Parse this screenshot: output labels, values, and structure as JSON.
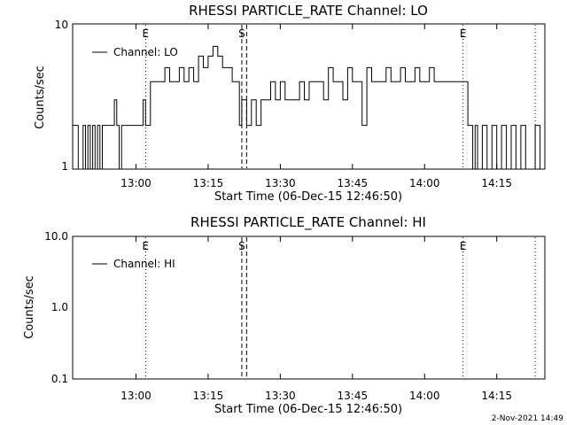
{
  "chart_data": [
    {
      "type": "line",
      "title": "RHESSI PARTICLE_RATE Channel: LO",
      "xlabel": "Start Time (06-Dec-15 12:46:50)",
      "ylabel": "Counts/sec",
      "yscale": "log",
      "ylim": [
        1,
        10
      ],
      "ytick_labels": [
        "1",
        "10"
      ],
      "xlim": [
        "12:46:50",
        "14:25:00"
      ],
      "xtick_labels": [
        "13:00",
        "13:15",
        "13:30",
        "13:45",
        "14:00",
        "14:15"
      ],
      "legend": {
        "placement": "top-left",
        "entries": [
          "Channel: LO"
        ]
      },
      "markers": [
        {
          "label": "E",
          "time": "13:02:00",
          "style": "dotted"
        },
        {
          "label": "S",
          "time": "13:22:00",
          "style": "dashed"
        },
        {
          "label": "",
          "time": "13:23:00",
          "style": "dashed"
        },
        {
          "label": "E",
          "time": "14:08:00",
          "style": "dotted"
        },
        {
          "label": "",
          "time": "14:23:00",
          "style": "dotted"
        }
      ],
      "series": [
        {
          "name": "Channel: LO",
          "x": [
            "12:46:50",
            "12:48:00",
            "12:49:00",
            "12:49:30",
            "12:50:00",
            "12:50:30",
            "12:51:00",
            "12:51:30",
            "12:52:00",
            "12:52:30",
            "12:53:00",
            "12:54:00",
            "12:55:00",
            "12:55:30",
            "12:56:00",
            "12:56:30",
            "12:57:00",
            "12:58:00",
            "12:59:00",
            "13:00:00",
            "13:01:00",
            "13:01:30",
            "13:02:00",
            "13:03:00",
            "13:04:00",
            "13:05:00",
            "13:06:00",
            "13:07:00",
            "13:08:00",
            "13:09:00",
            "13:10:00",
            "13:11:00",
            "13:12:00",
            "13:13:00",
            "13:14:00",
            "13:15:00",
            "13:16:00",
            "13:17:00",
            "13:18:00",
            "13:19:00",
            "13:20:00",
            "13:20:30",
            "13:21:00",
            "13:21:30",
            "13:22:00",
            "13:23:00",
            "13:24:00",
            "13:25:00",
            "13:26:00",
            "13:27:00",
            "13:28:00",
            "13:29:00",
            "13:30:00",
            "13:31:00",
            "13:32:00",
            "13:33:00",
            "13:34:00",
            "13:35:00",
            "13:36:00",
            "13:37:00",
            "13:38:00",
            "13:39:00",
            "13:40:00",
            "13:41:00",
            "13:42:00",
            "13:43:00",
            "13:44:00",
            "13:45:00",
            "13:46:00",
            "13:47:00",
            "13:48:00",
            "13:49:00",
            "13:50:00",
            "13:51:00",
            "13:52:00",
            "13:53:00",
            "13:54:00",
            "13:55:00",
            "13:56:00",
            "13:57:00",
            "13:58:00",
            "13:59:00",
            "14:00:00",
            "14:01:00",
            "14:02:00",
            "14:03:00",
            "14:04:00",
            "14:05:00",
            "14:06:00",
            "14:07:00",
            "14:08:00",
            "14:09:00",
            "14:10:00",
            "14:10:30",
            "14:11:00",
            "14:12:00",
            "14:13:00",
            "14:14:00",
            "14:15:00",
            "14:16:00",
            "14:17:00",
            "14:18:00",
            "14:19:00",
            "14:20:00",
            "14:21:00",
            "14:22:00",
            "14:23:00",
            "14:24:00",
            "14:25:00"
          ],
          "y": [
            2,
            1,
            2,
            1,
            2,
            1,
            2,
            1,
            2,
            1,
            2,
            2,
            2,
            3,
            2,
            1,
            2,
            2,
            2,
            2,
            2,
            3,
            2,
            4,
            4,
            4,
            5,
            4,
            4,
            5,
            4,
            5,
            4,
            6,
            5,
            6,
            7,
            6,
            5,
            5,
            4,
            4,
            4,
            2,
            3,
            2,
            3,
            2,
            3,
            3,
            4,
            3,
            4,
            3,
            3,
            3,
            4,
            3,
            4,
            4,
            4,
            3,
            5,
            4,
            4,
            3,
            5,
            4,
            4,
            2,
            5,
            4,
            4,
            4,
            5,
            4,
            4,
            5,
            4,
            4,
            5,
            4,
            4,
            5,
            4,
            4,
            4,
            4,
            4,
            4,
            4,
            2,
            1,
            2,
            1,
            2,
            1,
            2,
            1,
            2,
            1,
            2,
            1,
            2,
            1,
            1,
            2,
            1,
            1
          ]
        }
      ]
    },
    {
      "type": "line",
      "title": "RHESSI PARTICLE_RATE Channel: HI",
      "xlabel": "Start Time (06-Dec-15 12:46:50)",
      "ylabel": "Counts/sec",
      "yscale": "log",
      "ylim": [
        0.1,
        10.0
      ],
      "ytick_labels": [
        "0.1",
        "1.0",
        "10.0"
      ],
      "xlim": [
        "12:46:50",
        "14:25:00"
      ],
      "xtick_labels": [
        "13:00",
        "13:15",
        "13:30",
        "13:45",
        "14:00",
        "14:15"
      ],
      "legend": {
        "placement": "top-left",
        "entries": [
          "Channel: HI"
        ]
      },
      "markers": [
        {
          "label": "E",
          "time": "13:02:00",
          "style": "dotted"
        },
        {
          "label": "S",
          "time": "13:22:00",
          "style": "dashed"
        },
        {
          "label": "",
          "time": "13:23:00",
          "style": "dashed"
        },
        {
          "label": "E",
          "time": "14:08:00",
          "style": "dotted"
        },
        {
          "label": "",
          "time": "14:23:00",
          "style": "dotted"
        }
      ],
      "series": [
        {
          "name": "Channel: HI",
          "x": [],
          "y": []
        }
      ]
    }
  ],
  "footer": {
    "timestamp": "2-Nov-2021 14:49"
  }
}
